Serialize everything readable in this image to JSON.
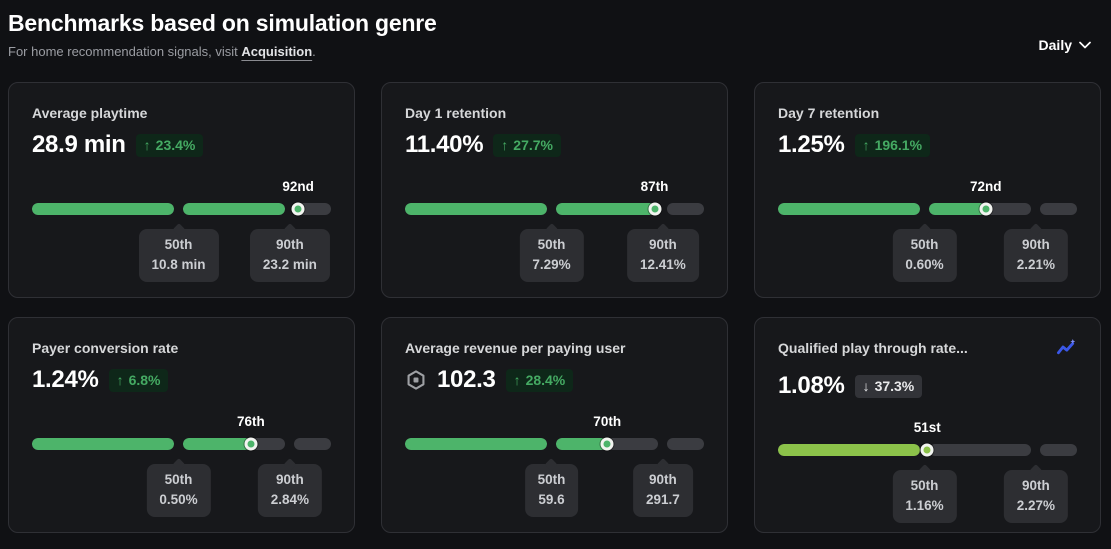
{
  "header": {
    "title": "Benchmarks based on simulation genre",
    "subtitle_prefix": "For home recommendation signals, visit ",
    "subtitle_link": "Acquisition",
    "subtitle_suffix": ".",
    "period_selector": "Daily"
  },
  "colors": {
    "bar_green": "#4db46a",
    "bar_yellow_green": "#8cc24a",
    "badge_up_bg": "#0e2719",
    "badge_up_text": "#45aa63",
    "badge_down_bg": "#323338",
    "badge_down_text": "#e9e9eb",
    "track_gray": "#3b3c41",
    "trend_icon_blue": "#3a57e8"
  },
  "cards": [
    {
      "title": "Average playtime",
      "value": "28.9 min",
      "change": {
        "direction": "up",
        "label": "23.4%"
      },
      "percentile": 92,
      "percentile_label": "92nd",
      "p50": {
        "label": "50th",
        "value": "10.8 min"
      },
      "p90": {
        "label": "90th",
        "value": "23.2 min"
      },
      "bar_color": "#4db46a"
    },
    {
      "title": "Day 1 retention",
      "value": "11.40%",
      "change": {
        "direction": "up",
        "label": "27.7%"
      },
      "percentile": 87,
      "percentile_label": "87th",
      "p50": {
        "label": "50th",
        "value": "7.29%"
      },
      "p90": {
        "label": "90th",
        "value": "12.41%"
      },
      "bar_color": "#4db46a"
    },
    {
      "title": "Day 7 retention",
      "value": "1.25%",
      "change": {
        "direction": "up",
        "label": "196.1%"
      },
      "percentile": 72,
      "percentile_label": "72nd",
      "p50": {
        "label": "50th",
        "value": "0.60%"
      },
      "p90": {
        "label": "90th",
        "value": "2.21%"
      },
      "bar_color": "#4db46a"
    },
    {
      "title": "Payer conversion rate",
      "value": "1.24%",
      "change": {
        "direction": "up",
        "label": "6.8%"
      },
      "percentile": 76,
      "percentile_label": "76th",
      "p50": {
        "label": "50th",
        "value": "0.50%"
      },
      "p90": {
        "label": "90th",
        "value": "2.84%"
      },
      "bar_color": "#4db46a"
    },
    {
      "title": "Average revenue per paying user",
      "value": "102.3",
      "currency_icon": "robux-icon",
      "change": {
        "direction": "up",
        "label": "28.4%"
      },
      "percentile": 70,
      "percentile_label": "70th",
      "p50": {
        "label": "50th",
        "value": "59.6"
      },
      "p90": {
        "label": "90th",
        "value": "291.7"
      },
      "bar_color": "#4db46a"
    },
    {
      "title": "Qualified play through rate...",
      "value": "1.08%",
      "corner_icon": "trend-chart-icon",
      "change": {
        "direction": "down",
        "label": "37.3%"
      },
      "percentile": 51,
      "percentile_label": "51st",
      "p50": {
        "label": "50th",
        "value": "1.16%"
      },
      "p90": {
        "label": "90th",
        "value": "2.27%"
      },
      "bar_color": "#8cc24a"
    }
  ]
}
